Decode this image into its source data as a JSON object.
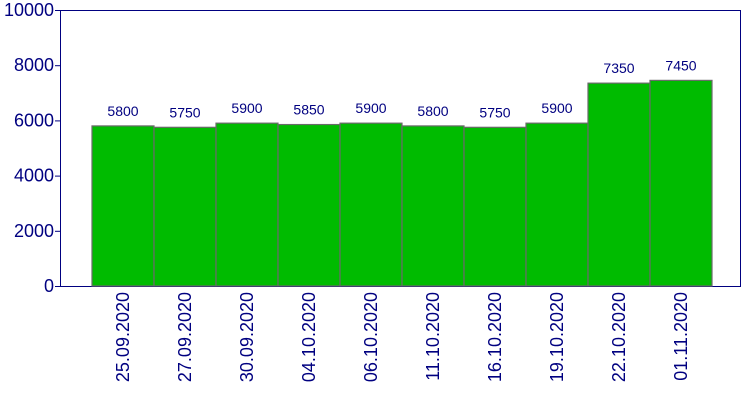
{
  "chart_data": {
    "type": "bar",
    "categories": [
      "25.09.2020",
      "27.09.2020",
      "30.09.2020",
      "04.10.2020",
      "06.10.2020",
      "11.10.2020",
      "16.10.2020",
      "19.10.2020",
      "22.10.2020",
      "01.11.2020"
    ],
    "values": [
      5800,
      5750,
      5900,
      5850,
      5900,
      5800,
      5750,
      5900,
      7350,
      7450
    ],
    "data_labels": [
      "5800",
      "5750",
      "5900",
      "5850",
      "5900",
      "5800",
      "5750",
      "5900",
      "7350",
      "7450"
    ],
    "yticks": [
      0,
      2000,
      4000,
      6000,
      8000,
      10000
    ],
    "ytick_labels": [
      "0",
      "2000",
      "4000",
      "6000",
      "8000",
      "10000"
    ],
    "ylim": [
      0,
      10000
    ],
    "title": "",
    "xlabel": "",
    "ylabel": "",
    "grid": false,
    "bar_color": "#00bb00",
    "bar_edge_color": "#6a6a6a",
    "text_color": "#000080"
  }
}
